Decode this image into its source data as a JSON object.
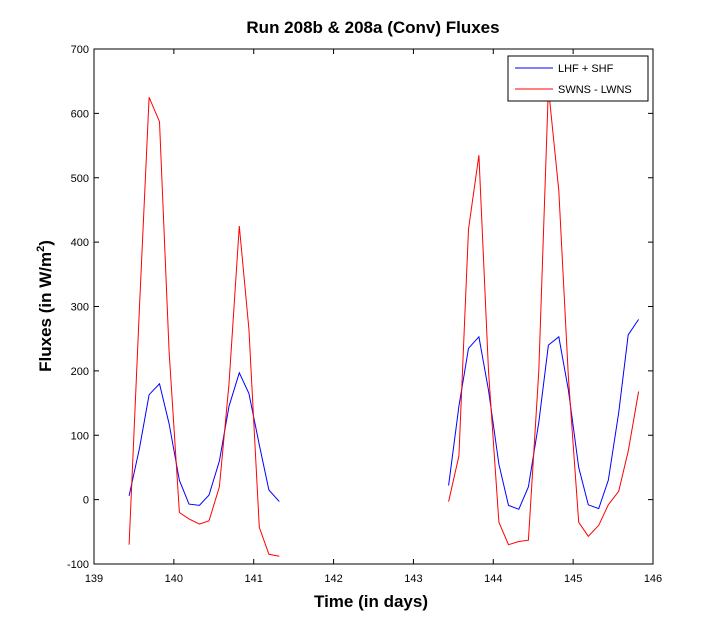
{
  "chart_data": {
    "type": "line",
    "title": "Run 208b & 208a (Conv) Fluxes",
    "xlabel": "Time (in days)",
    "ylabel_main": "Fluxes (in W/m",
    "ylabel_sup": "2",
    "ylabel_end": ")",
    "xlim": [
      139,
      146
    ],
    "ylim": [
      -100,
      700
    ],
    "xticks": [
      139,
      140,
      141,
      142,
      143,
      144,
      145,
      146
    ],
    "yticks": [
      -100,
      0,
      100,
      200,
      300,
      400,
      500,
      600,
      700
    ],
    "grid": false,
    "legend_position": "top-right",
    "series": [
      {
        "name": "LHF + SHF",
        "color": "#0000ff",
        "segments": [
          [
            [
              139.44,
              6
            ],
            [
              139.57,
              80
            ],
            [
              139.69,
              163
            ],
            [
              139.82,
              180
            ],
            [
              139.94,
              118
            ],
            [
              140.07,
              30
            ],
            [
              140.19,
              -7
            ],
            [
              140.32,
              -9
            ],
            [
              140.44,
              7
            ],
            [
              140.57,
              60
            ],
            [
              140.69,
              145
            ],
            [
              140.82,
              197
            ],
            [
              140.94,
              165
            ],
            [
              141.07,
              85
            ],
            [
              141.19,
              15
            ],
            [
              141.32,
              -3
            ]
          ],
          [
            [
              143.44,
              22
            ],
            [
              143.57,
              145
            ],
            [
              143.69,
              235
            ],
            [
              143.82,
              253
            ],
            [
              143.94,
              170
            ],
            [
              144.07,
              55
            ],
            [
              144.19,
              -9
            ],
            [
              144.32,
              -15
            ],
            [
              144.44,
              20
            ],
            [
              144.57,
              120
            ],
            [
              144.69,
              240
            ],
            [
              144.82,
              253
            ],
            [
              144.94,
              170
            ],
            [
              145.07,
              50
            ],
            [
              145.19,
              -8
            ],
            [
              145.32,
              -14
            ],
            [
              145.44,
              30
            ],
            [
              145.57,
              135
            ],
            [
              145.69,
              256
            ],
            [
              145.82,
              280
            ]
          ]
        ]
      },
      {
        "name": "SWNS - LWNS",
        "color": "#ff0000",
        "segments": [
          [
            [
              139.44,
              -70
            ],
            [
              139.57,
              300
            ],
            [
              139.69,
              625
            ],
            [
              139.82,
              587
            ],
            [
              139.94,
              230
            ],
            [
              140.07,
              -20
            ],
            [
              140.19,
              -30
            ],
            [
              140.32,
              -38
            ],
            [
              140.44,
              -33
            ],
            [
              140.57,
              20
            ],
            [
              140.69,
              180
            ],
            [
              140.82,
              425
            ],
            [
              140.94,
              265
            ],
            [
              141.07,
              -43
            ],
            [
              141.19,
              -85
            ],
            [
              141.32,
              -88
            ]
          ],
          [
            [
              143.44,
              -3
            ],
            [
              143.57,
              68
            ],
            [
              143.69,
              420
            ],
            [
              143.82,
              535
            ],
            [
              143.94,
              200
            ],
            [
              144.07,
              -35
            ],
            [
              144.19,
              -70
            ],
            [
              144.32,
              -65
            ],
            [
              144.44,
              -63
            ],
            [
              144.57,
              200
            ],
            [
              144.69,
              640
            ],
            [
              144.82,
              480
            ],
            [
              144.94,
              190
            ],
            [
              145.07,
              -35
            ],
            [
              145.19,
              -57
            ],
            [
              145.32,
              -40
            ],
            [
              145.44,
              -8
            ],
            [
              145.57,
              13
            ],
            [
              145.69,
              75
            ],
            [
              145.82,
              168
            ]
          ]
        ]
      }
    ]
  }
}
